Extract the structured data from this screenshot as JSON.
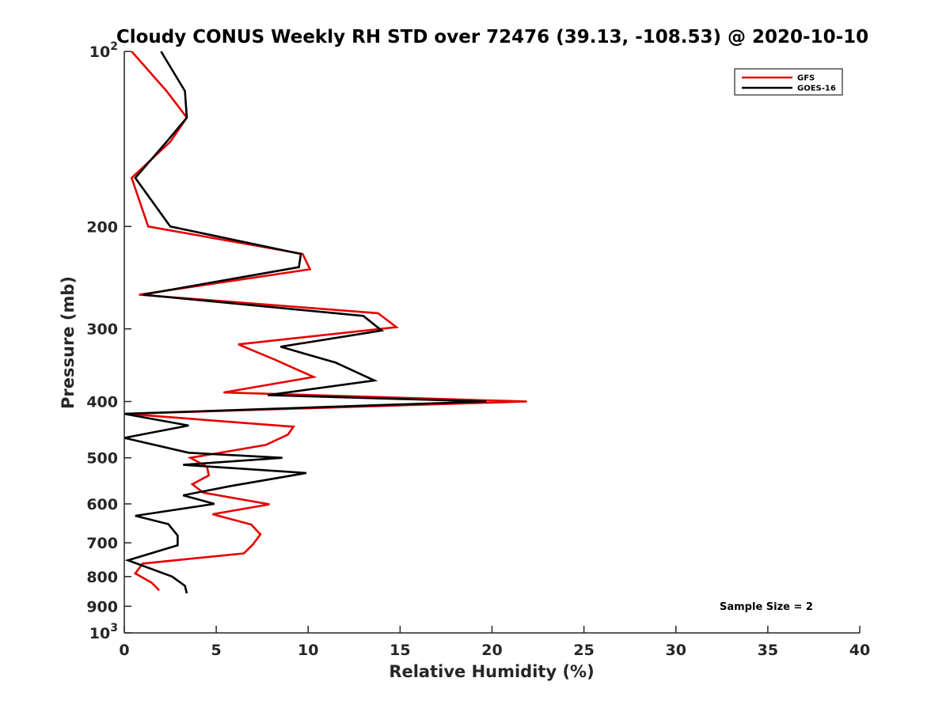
{
  "chart_data": {
    "type": "line",
    "title": "Cloudy CONUS Weekly RH STD over 72476 (39.13, -108.53) @ 2020-10-10",
    "xlabel": "Relative Humidity (%)",
    "ylabel": "Pressure (mb)",
    "xlim": [
      0,
      40
    ],
    "ylim": [
      100,
      1000
    ],
    "y_scale": "log",
    "y_reversed": true,
    "x_ticks": [
      0,
      5,
      10,
      15,
      20,
      25,
      30,
      35,
      40
    ],
    "x_tick_labels": [
      "0",
      "5",
      "10",
      "15",
      "20",
      "25",
      "30",
      "35",
      "40"
    ],
    "y_ticks": [
      100,
      200,
      300,
      400,
      500,
      600,
      700,
      800,
      900,
      1000
    ],
    "y_tick_labels": [
      {
        "base": "10",
        "exp": "2"
      },
      {
        "base": "200",
        "exp": ""
      },
      {
        "base": "300",
        "exp": ""
      },
      {
        "base": "400",
        "exp": ""
      },
      {
        "base": "500",
        "exp": ""
      },
      {
        "base": "600",
        "exp": ""
      },
      {
        "base": "700",
        "exp": ""
      },
      {
        "base": "800",
        "exp": ""
      },
      {
        "base": "900",
        "exp": ""
      },
      {
        "base": "10",
        "exp": "3"
      }
    ],
    "grid": false,
    "legend_position": "top-right",
    "annotation": "Sample Size = 2",
    "series": [
      {
        "name": "GFS",
        "color": "#e60000",
        "x": [
          0.4,
          2.3,
          3.4,
          2.5,
          0.4,
          1.3,
          9.7,
          10.1,
          0.8,
          13.8,
          14.8,
          6.2,
          8.2,
          10.3,
          5.4,
          21.9,
          0.1,
          9.2,
          8.9,
          7.7,
          3.6,
          4.5,
          4.6,
          3.7,
          4.3,
          7.9,
          4.8,
          6.9,
          7.4,
          7.0,
          6.5,
          1.0,
          0.6,
          1.5,
          1.9
        ],
        "y": [
          100,
          117,
          130,
          143,
          165,
          200,
          223,
          237,
          262,
          282,
          298,
          319,
          339,
          363,
          386,
          400,
          420,
          442,
          456,
          475,
          500,
          518,
          536,
          555,
          574,
          601,
          625,
          651,
          677,
          704,
          730,
          760,
          790,
          820,
          845
        ]
      },
      {
        "name": "GOES-16",
        "color": "#000000",
        "x": [
          2.0,
          3.3,
          3.4,
          2.3,
          0.6,
          2.5,
          9.6,
          9.5,
          1.0,
          13.0,
          14.0,
          8.5,
          11.5,
          13.6,
          7.8,
          19.7,
          0.0,
          3.5,
          0.0,
          3.5,
          8.6,
          3.2,
          9.9,
          5.8,
          3.2,
          4.9,
          0.6,
          2.4,
          2.9,
          2.9,
          0.2,
          2.6,
          3.3,
          3.4
        ],
        "y": [
          100,
          117,
          130,
          143,
          165,
          200,
          223,
          235,
          262,
          285,
          302,
          322,
          343,
          368,
          390,
          400,
          420,
          440,
          462,
          490,
          500,
          514,
          531,
          559,
          580,
          600,
          629,
          650,
          680,
          707,
          750,
          800,
          830,
          855
        ]
      }
    ]
  }
}
